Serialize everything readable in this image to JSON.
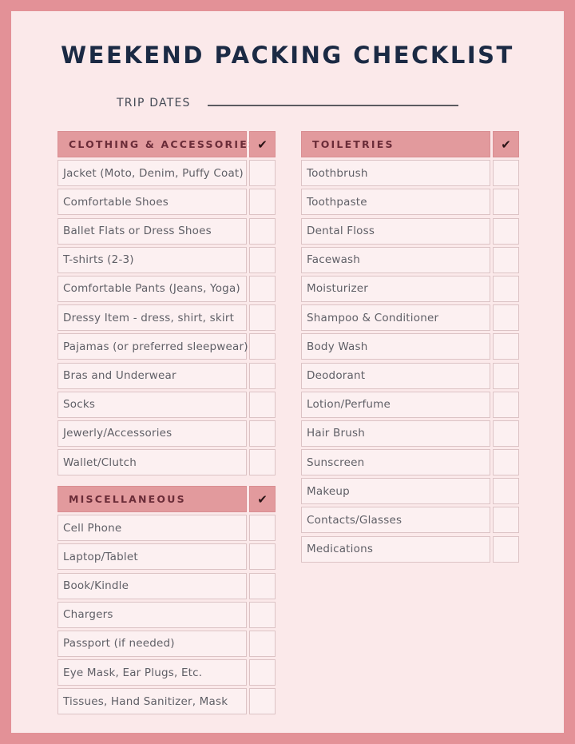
{
  "title": "WEEKEND PACKING CHECKLIST",
  "trip_dates_label": "TRIP DATES",
  "check_symbol": "✔",
  "colors": {
    "border": "#e39197",
    "background": "#fbe9ea",
    "header": "#e29a9d",
    "title": "#1b2a44"
  },
  "sections": [
    {
      "title": "CLOTHING & ACCESSORIES",
      "items": [
        "Jacket (Moto, Denim, Puffy Coat)",
        "Comfortable Shoes",
        "Ballet Flats or Dress Shoes",
        "T-shirts (2-3)",
        "Comfortable Pants (Jeans, Yoga)",
        "Dressy Item - dress, shirt, skirt",
        "Pajamas (or preferred sleepwear)",
        "Bras and Underwear",
        "Socks",
        "Jewerly/Accessories",
        "Wallet/Clutch"
      ]
    },
    {
      "title": "MISCELLANEOUS",
      "items": [
        "Cell Phone",
        "Laptop/Tablet",
        "Book/Kindle",
        "Chargers",
        "Passport (if needed)",
        "Eye Mask, Ear Plugs, Etc.",
        "Tissues, Hand Sanitizer, Mask"
      ]
    },
    {
      "title": "TOILETRIES",
      "items": [
        "Toothbrush",
        "Toothpaste",
        "Dental Floss",
        "Facewash",
        "Moisturizer",
        "Shampoo & Conditioner",
        "Body Wash",
        "Deodorant",
        "Lotion/Perfume",
        "Hair Brush",
        "Sunscreen",
        "Makeup",
        "Contacts/Glasses",
        "Medications"
      ]
    }
  ]
}
